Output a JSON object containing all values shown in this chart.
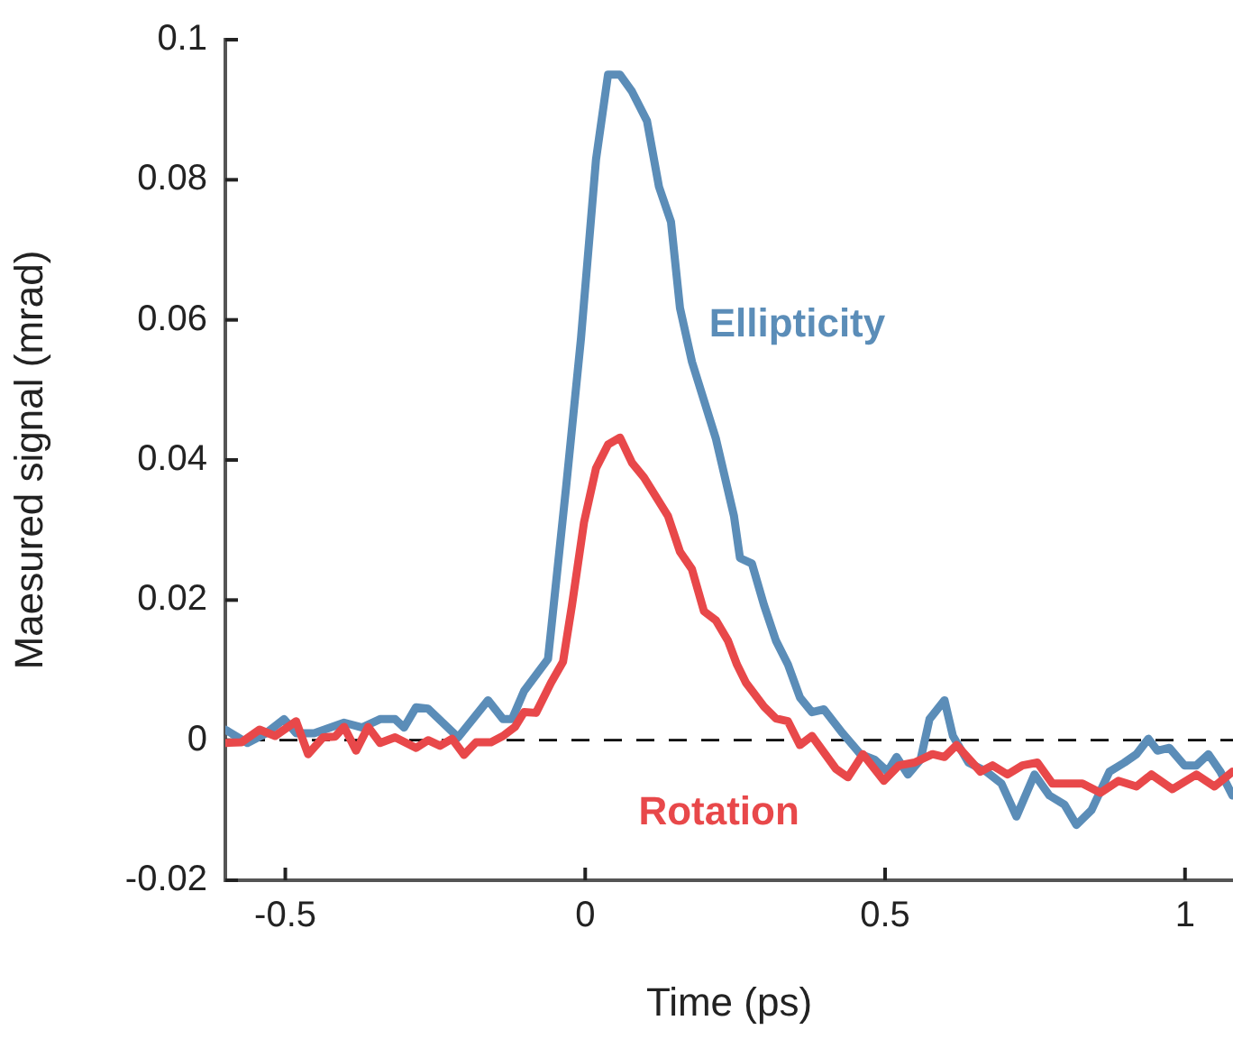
{
  "chart_data": {
    "type": "line",
    "xlabel": "Time (ps)",
    "ylabel": "Maesured signal (mrad)",
    "xlim": [
      -0.6,
      1.08
    ],
    "xticks": [
      -0.5,
      0,
      0.5,
      1
    ],
    "ylim": [
      -0.02,
      0.1
    ],
    "yticks": [
      -0.02,
      0,
      0.02,
      0.04,
      0.06,
      0.08,
      0.1
    ],
    "grid": false,
    "legend": false,
    "marker": "none",
    "line_style": "solid",
    "ref_lines": [
      {
        "axis": "y",
        "value": 0,
        "line_style": "dashed",
        "color": "#000000"
      }
    ],
    "series": [
      {
        "name": "Ellipticity",
        "color": "#5b8db8",
        "x": [
          -0.6,
          -0.563,
          -0.532,
          -0.502,
          -0.482,
          -0.452,
          -0.402,
          -0.372,
          -0.342,
          -0.317,
          -0.302,
          -0.282,
          -0.262,
          -0.212,
          -0.162,
          -0.137,
          -0.122,
          -0.102,
          -0.062,
          -0.032,
          -0.007,
          0.018,
          0.038,
          0.058,
          0.078,
          0.103,
          0.123,
          0.143,
          0.158,
          0.178,
          0.218,
          0.248,
          0.258,
          0.278,
          0.298,
          0.318,
          0.338,
          0.358,
          0.378,
          0.398,
          0.429,
          0.459,
          0.483,
          0.504,
          0.519,
          0.538,
          0.559,
          0.574,
          0.599,
          0.613,
          0.639,
          0.669,
          0.694,
          0.719,
          0.749,
          0.774,
          0.799,
          0.819,
          0.844,
          0.874,
          0.899,
          0.919,
          0.939,
          0.954,
          0.974,
          0.999,
          1.019,
          1.039,
          1.059,
          1.079
        ],
        "values": [
          0.0015,
          -0.0004,
          0.001,
          0.003,
          0.001,
          0.001,
          0.0025,
          0.0018,
          0.003,
          0.003,
          0.0018,
          0.0047,
          0.0045,
          0.0004,
          0.0057,
          0.003,
          0.003,
          0.007,
          0.0116,
          0.036,
          0.0574,
          0.0829,
          0.095,
          0.095,
          0.0926,
          0.0884,
          0.079,
          0.074,
          0.0617,
          0.054,
          0.043,
          0.032,
          0.026,
          0.0252,
          0.0193,
          0.0142,
          0.0108,
          0.0061,
          0.004,
          0.0044,
          0.001,
          -0.002,
          -0.0028,
          -0.0045,
          -0.0024,
          -0.0049,
          -0.0028,
          0.003,
          0.0057,
          0.0006,
          -0.0032,
          -0.0045,
          -0.0062,
          -0.0109,
          -0.0049,
          -0.0079,
          -0.0092,
          -0.0121,
          -0.01,
          -0.0045,
          -0.0032,
          -0.002,
          0.0002,
          -0.0015,
          -0.0011,
          -0.0036,
          -0.0036,
          -0.002,
          -0.0045,
          -0.0079
        ]
      },
      {
        "name": "Rotation",
        "color": "#e8484a",
        "x": [
          -0.6,
          -0.573,
          -0.543,
          -0.517,
          -0.482,
          -0.462,
          -0.437,
          -0.417,
          -0.402,
          -0.382,
          -0.362,
          -0.342,
          -0.317,
          -0.282,
          -0.262,
          -0.242,
          -0.222,
          -0.202,
          -0.182,
          -0.157,
          -0.137,
          -0.117,
          -0.102,
          -0.082,
          -0.057,
          -0.037,
          -0.022,
          -0.002,
          0.018,
          0.038,
          0.058,
          0.078,
          0.098,
          0.138,
          0.158,
          0.178,
          0.198,
          0.218,
          0.238,
          0.253,
          0.268,
          0.298,
          0.318,
          0.338,
          0.358,
          0.378,
          0.418,
          0.438,
          0.463,
          0.498,
          0.523,
          0.549,
          0.579,
          0.599,
          0.619,
          0.659,
          0.679,
          0.704,
          0.729,
          0.754,
          0.779,
          0.804,
          0.829,
          0.859,
          0.889,
          0.919,
          0.944,
          0.979,
          1.019,
          1.049,
          1.079
        ],
        "values": [
          -0.0004,
          -0.0003,
          0.0015,
          0.0006,
          0.0027,
          -0.002,
          0.0004,
          0.0005,
          0.0019,
          -0.0015,
          0.0019,
          -0.0004,
          0.0004,
          -0.0011,
          0,
          -0.0008,
          0.0002,
          -0.0021,
          -0.0003,
          -0.0003,
          0.0006,
          0.0019,
          0.004,
          0.0039,
          0.0082,
          0.0112,
          0.0193,
          0.0311,
          0.0388,
          0.0422,
          0.0432,
          0.0396,
          0.0375,
          0.032,
          0.0269,
          0.0244,
          0.0184,
          0.0171,
          0.0142,
          0.0108,
          0.0082,
          0.0048,
          0.0031,
          0.0027,
          -0.0007,
          0.0006,
          -0.0041,
          -0.0053,
          -0.002,
          -0.0058,
          -0.0036,
          -0.0032,
          -0.002,
          -0.0024,
          -0.0007,
          -0.0045,
          -0.0036,
          -0.0049,
          -0.0036,
          -0.0032,
          -0.0062,
          -0.0062,
          -0.0062,
          -0.0075,
          -0.0058,
          -0.0066,
          -0.0049,
          -0.007,
          -0.0049,
          -0.0066,
          -0.0045
        ]
      }
    ]
  }
}
